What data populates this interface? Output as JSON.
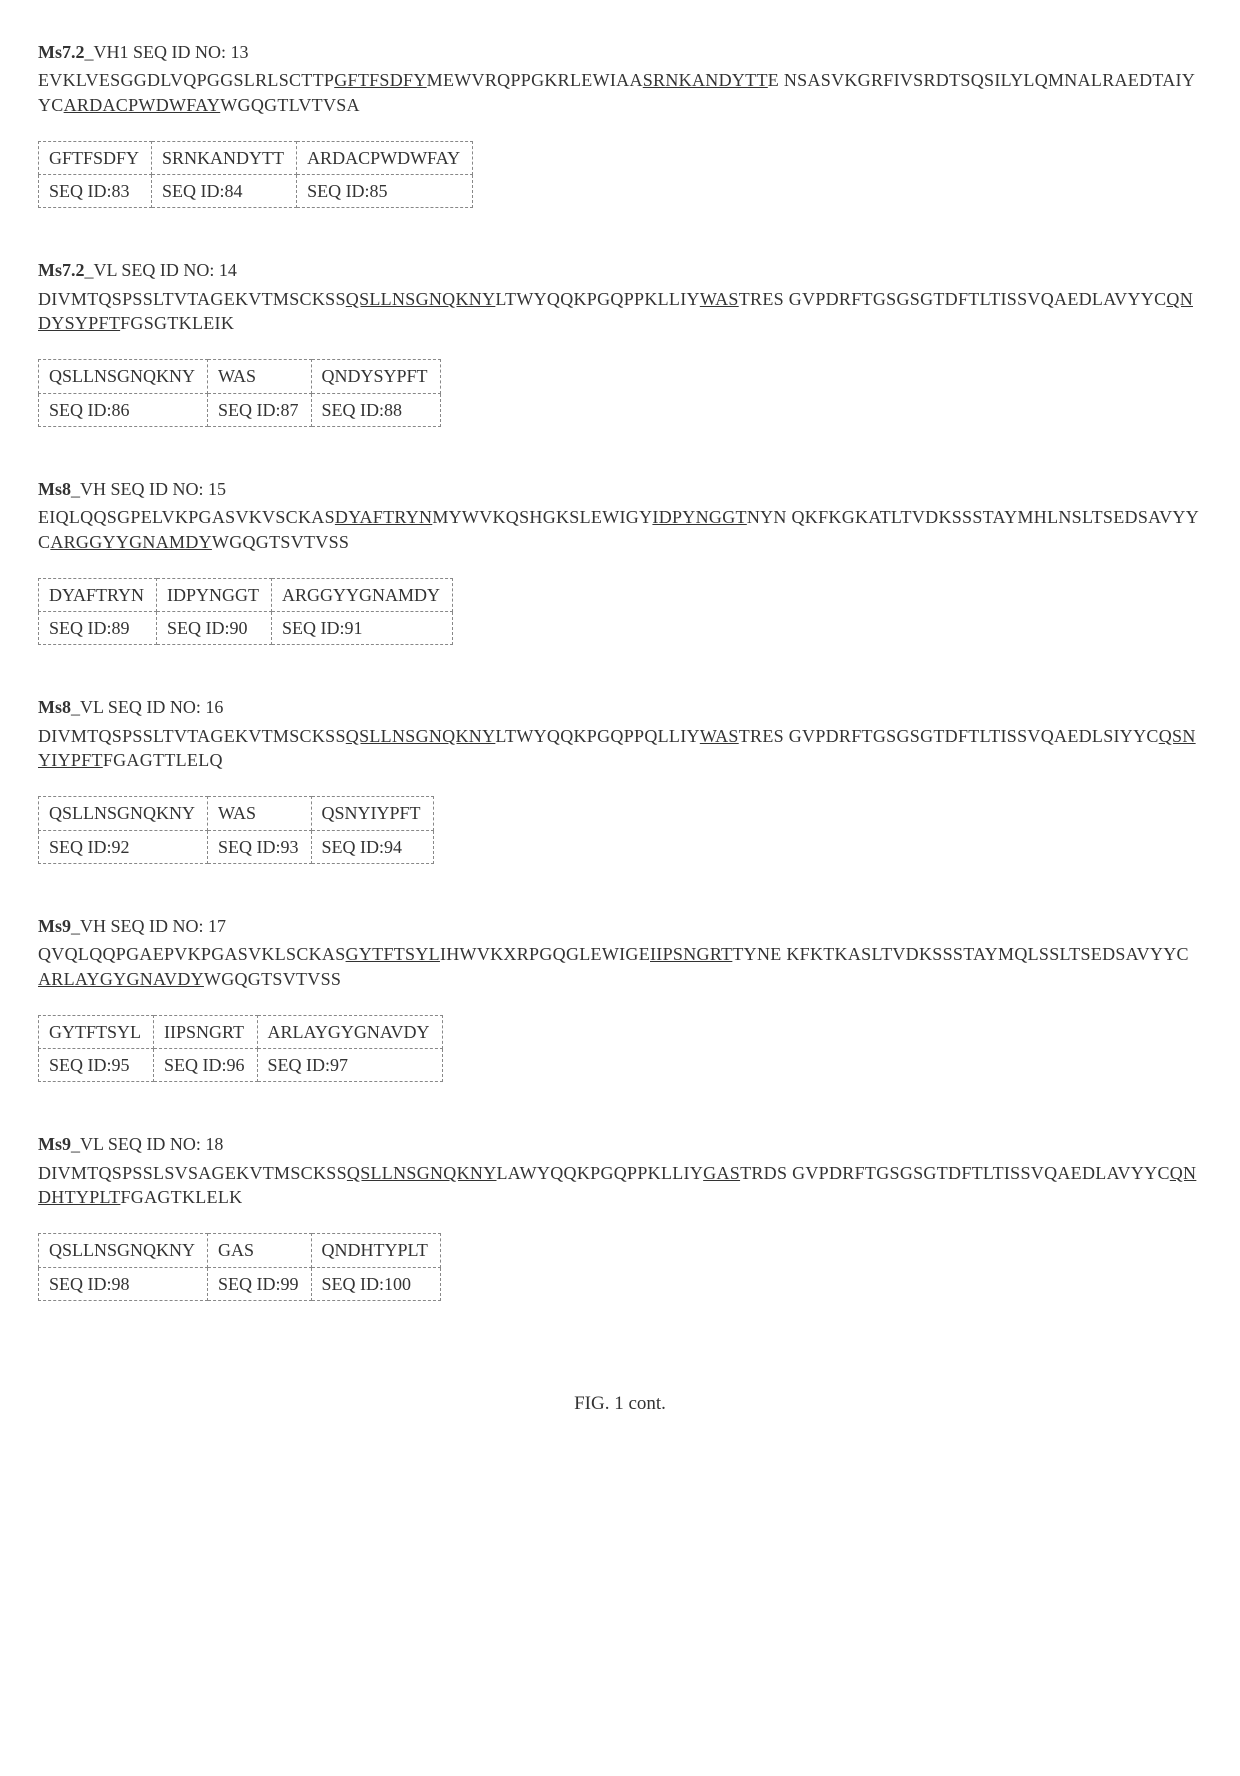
{
  "sections": [
    {
      "heading_bold": "Ms7.2",
      "heading_rest": "_VH1 SEQ ID NO: 13",
      "seq_html": "EVKLVESGGDLVQPGGSLRLSCTTP<span class='u'>GFTFSDFY</span>MEWVRQPPGKRLEWIAA<span class='u'>SRNKANDYTT</span>E NSASVKGRFIVSRDTSQSILYLQMNALRAEDTAIYYC<span class='u'>ARDACPWDWFAY</span>WGQGTLVTVSA",
      "table": {
        "row1": [
          "GFTFSDFY",
          "SRNKANDYTT",
          "ARDACPWDWFAY"
        ],
        "row2": [
          "SEQ ID:83",
          "SEQ ID:84",
          "SEQ ID:85"
        ]
      }
    },
    {
      "heading_bold": "Ms7.2",
      "heading_rest": "_VL SEQ ID NO: 14",
      "seq_html": "DIVMTQSPSSLTVTAGEKVTMSCKSS<span class='u'>QSLLNSGNQKNY</span>LTWYQQKPGQPPKLLIY<span class='u'>WAS</span>TRES GVPDRFTGSGSGTDFTLTISSVQAEDLAVYYC<span class='u'>QNDYSYPFT</span>FGSGTKLEIK",
      "table": {
        "row1": [
          "QSLLNSGNQKNY",
          "WAS",
          "QNDYSYPFT"
        ],
        "row2": [
          "SEQ ID:86",
          "SEQ ID:87",
          "SEQ ID:88"
        ]
      }
    },
    {
      "heading_bold": "Ms8",
      "heading_rest": "_VH SEQ ID NO: 15",
      "seq_html": "EIQLQQSGPELVKPGASVKVSCKAS<span class='u'>DYAFTRYN</span>MYWVKQSHGKSLEWIGY<span class='u'>IDPYNGGT</span>NYN QKFKGKATLTVDKSSSTAYMHLNSLTSEDSAVYYC<span class='u'>ARGGYYGNAMDY</span>WGQGTSVTVSS",
      "table": {
        "row1": [
          "DYAFTRYN",
          "IDPYNGGT",
          "ARGGYYGNAMDY"
        ],
        "row2": [
          "SEQ ID:89",
          "SEQ ID:90",
          "SEQ ID:91"
        ]
      }
    },
    {
      "heading_bold": "Ms8",
      "heading_rest": "_VL SEQ ID NO: 16",
      "seq_html": "DIVMTQSPSSLTVTAGEKVTMSCKSS<span class='u'>QSLLNSGNQKNY</span>LTWYQQKPGQPPQLLIY<span class='u'>WAS</span>TRES GVPDRFTGSGSGTDFTLTISSVQAEDLSIYYC<span class='u'>QSNYIYPFT</span>FGAGTTLELQ",
      "table": {
        "row1": [
          "QSLLNSGNQKNY",
          "WAS",
          "QSNYIYPFT"
        ],
        "row2": [
          "SEQ ID:92",
          "SEQ ID:93",
          "SEQ ID:94"
        ]
      }
    },
    {
      "heading_bold": "Ms9",
      "heading_rest": "_VH SEQ ID NO: 17",
      "seq_html": "QVQLQQPGAEPVKPGASVKLSCKAS<span class='u'>GYTFTSYL</span>IHWVKXRPGQGLEWIGE<span class='u'>IIPSNGRT</span>TYNE KFKTKASLTVDKSSSTAYMQLSSLTSEDSAVYYC<span class='u'>ARLAYGYGNAVDY</span>WGQGTSVTVSS",
      "table": {
        "row1": [
          "GYTFTSYL",
          "IIPSNGRT",
          "ARLAYGYGNAVDY"
        ],
        "row2": [
          "SEQ ID:95",
          "SEQ ID:96",
          "SEQ ID:97"
        ]
      }
    },
    {
      "heading_bold": "Ms9",
      "heading_rest": "_VL SEQ ID NO: 18",
      "seq_html": "DIVMTQSPSSLSVSAGEKVTMSCKSS<span class='u'>QSLLNSGNQKNY</span>LAWYQQKPGQPPKLLIY<span class='u'>GAS</span>TRDS GVPDRFTGSGSGTDFTLTISSVQAEDLAVYYC<span class='u'>QNDHTYPLT</span>FGAGTKLELK",
      "table": {
        "row1": [
          "QSLLNSGNQKNY",
          "GAS",
          "QNDHTYPLT"
        ],
        "row2": [
          "SEQ ID:98",
          "SEQ ID:99",
          "SEQ ID:100"
        ]
      }
    }
  ],
  "figure_caption": "FIG. 1 cont."
}
